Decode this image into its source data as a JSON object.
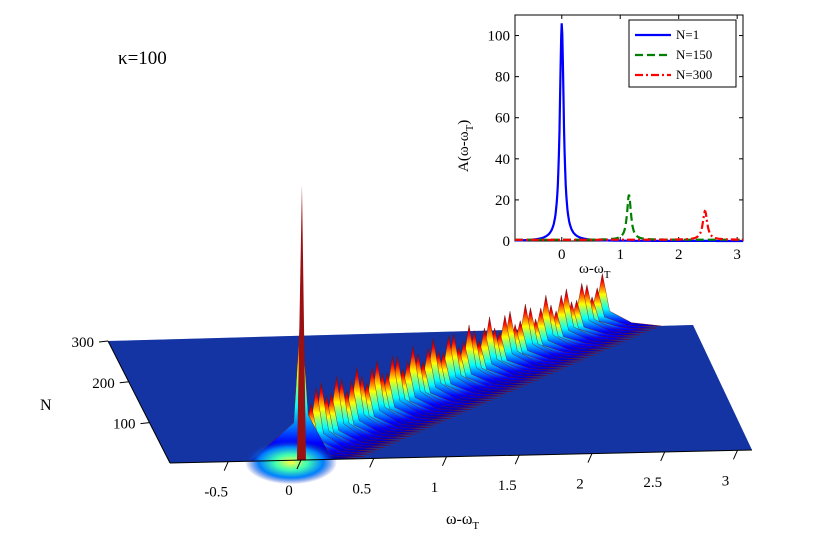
{
  "annotation": "κ=100",
  "chart_data": [
    {
      "type": "surface",
      "xlabel": "ω-ω",
      "xlabel_sub": "T",
      "ylabel": "N",
      "x_ticks": [
        "-0.5",
        "0",
        "0.5",
        "1",
        "1.5",
        "2",
        "2.5",
        "3"
      ],
      "y_ticks": [
        "100",
        "200",
        "300"
      ],
      "xlim": [
        -0.9,
        3.1
      ],
      "ylim": [
        1,
        300
      ],
      "peak_positions_N_1_to_300": [
        0.0,
        2.48
      ],
      "peak_height_N1": 105,
      "colormap": "jet"
    },
    {
      "type": "line",
      "xlabel": "ω-ω",
      "xlabel_sub": "T",
      "ylabel": "A(ω-ω",
      "ylabel_sub": "T",
      "ylabel_close": ")",
      "x_ticks": [
        "0",
        "1",
        "2",
        "3"
      ],
      "y_ticks": [
        "0",
        "20",
        "40",
        "60",
        "80",
        "100"
      ],
      "xlim": [
        -0.8,
        3.1
      ],
      "ylim": [
        0,
        110
      ],
      "series": [
        {
          "name": "N=1",
          "color": "#0000ff",
          "style": "solid",
          "peak_x": 0.0,
          "peak_y": 106,
          "width": 0.04
        },
        {
          "name": "N=150",
          "color": "#008000",
          "style": "dashed",
          "peak_x": 1.15,
          "peak_y": 22,
          "width": 0.04
        },
        {
          "name": "N=300",
          "color": "#ff0000",
          "style": "dashdot",
          "peak_x": 2.45,
          "peak_y": 14,
          "width": 0.045
        }
      ]
    }
  ]
}
